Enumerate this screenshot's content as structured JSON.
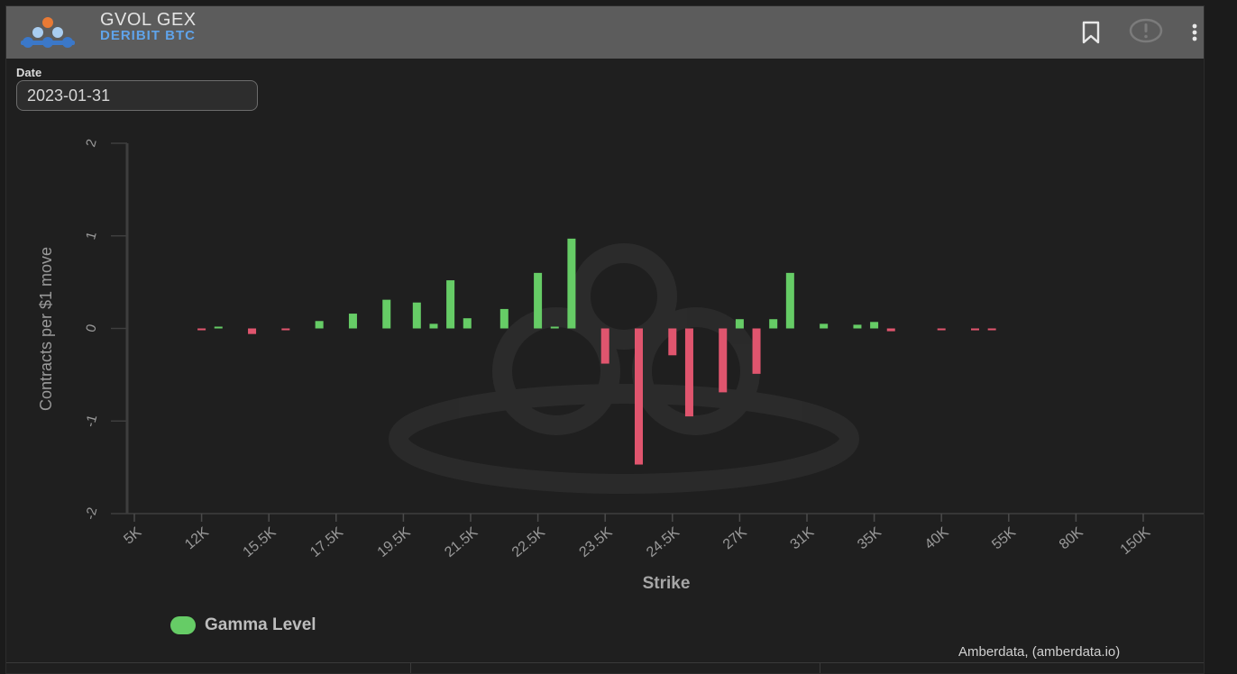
{
  "header": {
    "title": "GVOL GEX",
    "subtitle": "DERIBIT BTC"
  },
  "date_filter": {
    "label": "Date",
    "value": "2023-01-31"
  },
  "footer": {
    "credit": "Amberdata, (amberdata.io)"
  },
  "colors": {
    "positive": "#66cc66",
    "negative": "#e0556e",
    "header_bg": "#5c5c5c",
    "subtitle": "#5fa3ea"
  },
  "icons": [
    "logo-icon",
    "bookmark-icon",
    "alert-icon",
    "more-vertical-icon"
  ],
  "chart_data": {
    "type": "bar",
    "xlabel": "Strike",
    "ylabel": "Contracts per $1 move",
    "ylim": [
      -2,
      2
    ],
    "yticks": [
      2,
      1,
      0,
      -1,
      -2
    ],
    "ytick_labels": [
      "2",
      "1",
      "0",
      "-1",
      "-2"
    ],
    "xtick_labels": [
      "5K",
      "12K",
      "15.5K",
      "17.5K",
      "19.5K",
      "21.5K",
      "22.5K",
      "23.5K",
      "24.5K",
      "27K",
      "31K",
      "35K",
      "40K",
      "55K",
      "80K",
      "150K"
    ],
    "legend": {
      "label": "Gamma Level",
      "position": "bottom-left"
    },
    "grid": false,
    "bars": [
      {
        "pos": 1.0,
        "value": -0.01
      },
      {
        "pos": 1.25,
        "value": 0.01
      },
      {
        "pos": 1.75,
        "value": -0.06
      },
      {
        "pos": 2.25,
        "value": -0.01
      },
      {
        "pos": 2.75,
        "value": 0.08
      },
      {
        "pos": 3.25,
        "value": 0.16
      },
      {
        "pos": 3.75,
        "value": 0.31
      },
      {
        "pos": 4.2,
        "value": 0.28
      },
      {
        "pos": 4.45,
        "value": 0.05
      },
      {
        "pos": 4.7,
        "value": 0.52
      },
      {
        "pos": 4.95,
        "value": 0.11
      },
      {
        "pos": 5.5,
        "value": 0.21
      },
      {
        "pos": 6.0,
        "value": 0.6
      },
      {
        "pos": 6.25,
        "value": 0.01
      },
      {
        "pos": 6.5,
        "value": 0.97
      },
      {
        "pos": 7.0,
        "value": -0.38
      },
      {
        "pos": 7.5,
        "value": -1.47
      },
      {
        "pos": 8.0,
        "value": -0.29
      },
      {
        "pos": 8.25,
        "value": -0.95
      },
      {
        "pos": 8.75,
        "value": -0.69
      },
      {
        "pos": 9.0,
        "value": 0.1
      },
      {
        "pos": 9.25,
        "value": -0.49
      },
      {
        "pos": 9.5,
        "value": 0.1
      },
      {
        "pos": 9.75,
        "value": 0.6
      },
      {
        "pos": 10.25,
        "value": 0.05
      },
      {
        "pos": 10.75,
        "value": 0.04
      },
      {
        "pos": 11.0,
        "value": 0.07
      },
      {
        "pos": 11.25,
        "value": -0.03
      },
      {
        "pos": 12.0,
        "value": -0.01
      },
      {
        "pos": 12.5,
        "value": -0.02
      },
      {
        "pos": 12.75,
        "value": -0.01
      }
    ]
  }
}
